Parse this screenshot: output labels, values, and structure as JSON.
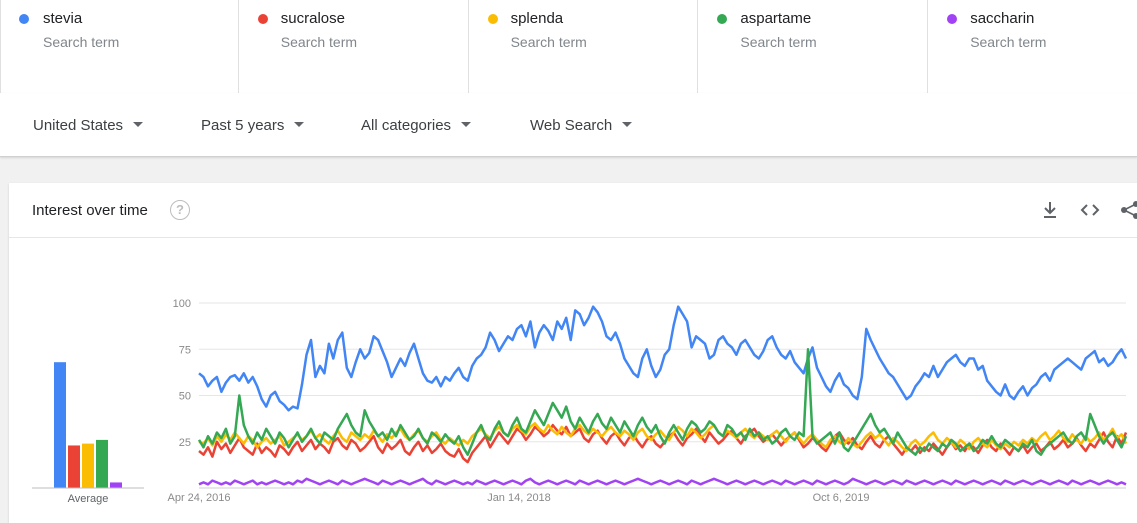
{
  "terms": [
    {
      "name": "stevia",
      "sub": "Search term",
      "color": "#4285f4"
    },
    {
      "name": "sucralose",
      "sub": "Search term",
      "color": "#ea4335"
    },
    {
      "name": "splenda",
      "sub": "Search term",
      "color": "#fbbc04"
    },
    {
      "name": "aspartame",
      "sub": "Search term",
      "color": "#34a853"
    },
    {
      "name": "saccharin",
      "sub": "Search term",
      "color": "#a142f4"
    }
  ],
  "filters": {
    "region": "United States",
    "time": "Past 5 years",
    "category": "All categories",
    "search_type": "Web Search"
  },
  "card": {
    "title": "Interest over time",
    "help_icon": "question-mark-icon",
    "tools": [
      "download-icon",
      "embed-code-icon",
      "share-icon"
    ]
  },
  "chart_data": {
    "type": "line",
    "ylim": [
      0,
      100
    ],
    "yticks": [
      "100",
      "75",
      "50",
      "25"
    ],
    "xticks": [
      "Apr 24, 2016",
      "Jan 14, 2018",
      "Oct 6, 2019"
    ],
    "average_label": "Average",
    "averages": [
      68,
      23,
      24,
      26,
      3
    ],
    "series": [
      {
        "name": "stevia",
        "color": "#4285f4",
        "values": [
          62,
          60,
          55,
          58,
          60,
          52,
          57,
          60,
          61,
          58,
          62,
          57,
          60,
          55,
          48,
          44,
          50,
          52,
          47,
          45,
          42,
          44,
          43,
          56,
          72,
          80,
          60,
          66,
          62,
          78,
          70,
          80,
          84,
          65,
          60,
          68,
          75,
          70,
          73,
          82,
          80,
          74,
          68,
          60,
          65,
          70,
          66,
          73,
          78,
          70,
          62,
          58,
          57,
          60,
          55,
          60,
          58,
          62,
          65,
          60,
          58,
          66,
          70,
          72,
          76,
          84,
          80,
          74,
          78,
          82,
          80,
          86,
          88,
          82,
          90,
          76,
          84,
          88,
          85,
          80,
          90,
          86,
          92,
          80,
          96,
          94,
          88,
          92,
          98,
          95,
          90,
          82,
          80,
          84,
          78,
          70,
          66,
          62,
          60,
          70,
          75,
          66,
          60,
          64,
          72,
          75,
          88,
          98,
          94,
          90,
          76,
          82,
          80,
          78,
          70,
          72,
          80,
          82,
          78,
          76,
          72,
          78,
          80,
          76,
          72,
          70,
          74,
          80,
          82,
          76,
          72,
          70,
          74,
          68,
          65,
          62,
          70,
          76,
          65,
          60,
          55,
          52,
          58,
          62,
          56,
          54,
          50,
          48,
          60,
          86,
          80,
          75,
          70,
          66,
          62,
          60,
          56,
          52,
          48,
          50,
          55,
          58,
          62,
          60,
          66,
          60,
          64,
          68,
          70,
          72,
          68,
          66,
          70,
          70,
          64,
          66,
          58,
          55,
          52,
          50,
          56,
          50,
          48,
          52,
          55,
          50,
          54,
          56,
          60,
          62,
          58,
          64,
          66,
          68,
          70,
          68,
          66,
          64,
          70,
          72,
          74,
          68,
          70,
          66,
          68,
          72,
          75,
          70
        ]
      },
      {
        "name": "sucralose",
        "color": "#ea4335",
        "values": [
          20,
          18,
          22,
          17,
          25,
          21,
          24,
          19,
          23,
          27,
          22,
          20,
          18,
          24,
          19,
          22,
          20,
          17,
          23,
          21,
          18,
          22,
          25,
          20,
          23,
          26,
          21,
          24,
          22,
          19,
          25,
          27,
          23,
          21,
          26,
          24,
          20,
          22,
          25,
          28,
          22,
          19,
          24,
          21,
          23,
          26,
          20,
          18,
          22,
          25,
          20,
          23,
          19,
          21,
          24,
          20,
          18,
          17,
          21,
          16,
          14,
          19,
          22,
          25,
          28,
          22,
          26,
          30,
          27,
          24,
          28,
          32,
          30,
          26,
          29,
          33,
          31,
          28,
          30,
          34,
          31,
          29,
          33,
          28,
          30,
          32,
          27,
          25,
          29,
          31,
          27,
          24,
          28,
          30,
          26,
          23,
          27,
          29,
          25,
          22,
          26,
          28,
          24,
          22,
          25,
          28,
          30,
          26,
          23,
          27,
          29,
          32,
          28,
          25,
          30,
          27,
          24,
          26,
          29,
          31,
          27,
          24,
          28,
          30,
          32,
          28,
          25,
          27,
          29,
          26,
          23,
          26,
          28,
          30,
          26,
          22,
          24,
          27,
          25,
          22,
          20,
          24,
          28,
          30,
          26,
          24,
          27,
          23,
          21,
          25,
          28,
          24,
          22,
          26,
          28,
          24,
          21,
          18,
          22,
          20,
          23,
          19,
          22,
          20,
          24,
          21,
          18,
          22,
          25,
          21,
          23,
          20,
          24,
          22,
          19,
          23,
          26,
          22,
          20,
          24,
          21,
          18,
          22,
          20,
          23,
          19,
          22,
          24,
          20,
          22,
          25,
          21,
          23,
          26,
          22,
          24,
          27,
          23,
          20,
          24,
          22,
          26,
          30,
          25,
          22,
          28,
          24,
          30
        ]
      },
      {
        "name": "splenda",
        "color": "#fbbc04",
        "values": [
          25,
          24,
          27,
          23,
          28,
          25,
          29,
          26,
          30,
          27,
          24,
          28,
          26,
          22,
          25,
          27,
          24,
          26,
          28,
          23,
          25,
          27,
          29,
          26,
          28,
          31,
          27,
          29,
          26,
          24,
          28,
          31,
          27,
          25,
          30,
          28,
          26,
          29,
          27,
          31,
          28,
          25,
          29,
          27,
          30,
          32,
          28,
          26,
          29,
          31,
          27,
          25,
          28,
          30,
          26,
          24,
          27,
          25,
          23,
          26,
          24,
          28,
          30,
          32,
          29,
          27,
          31,
          33,
          30,
          28,
          32,
          34,
          31,
          29,
          33,
          35,
          32,
          30,
          34,
          31,
          29,
          33,
          30,
          28,
          32,
          34,
          31,
          29,
          32,
          30,
          28,
          31,
          33,
          30,
          28,
          31,
          29,
          26,
          30,
          32,
          28,
          26,
          29,
          31,
          28,
          26,
          30,
          33,
          31,
          28,
          32,
          30,
          27,
          29,
          32,
          34,
          30,
          28,
          31,
          29,
          27,
          30,
          32,
          29,
          27,
          30,
          28,
          26,
          29,
          31,
          28,
          25,
          28,
          30,
          27,
          24,
          27,
          29,
          26,
          24,
          22,
          26,
          28,
          25,
          23,
          27,
          24,
          22,
          25,
          28,
          30,
          27,
          29,
          26,
          23,
          27,
          25,
          22,
          20,
          24,
          26,
          23,
          25,
          28,
          30,
          26,
          24,
          27,
          25,
          22,
          26,
          24,
          21,
          25,
          27,
          24,
          22,
          26,
          23,
          21,
          24,
          22,
          25,
          23,
          26,
          24,
          27,
          25,
          28,
          30,
          26,
          28,
          31,
          27,
          25,
          29,
          26,
          24,
          28,
          25,
          27,
          30,
          26,
          28,
          32,
          27,
          29,
          24
        ]
      },
      {
        "name": "aspartame",
        "color": "#34a853",
        "values": [
          26,
          22,
          28,
          24,
          30,
          27,
          32,
          24,
          28,
          50,
          34,
          28,
          24,
          30,
          26,
          32,
          28,
          24,
          30,
          27,
          22,
          26,
          30,
          25,
          28,
          32,
          27,
          24,
          30,
          28,
          26,
          32,
          36,
          40,
          34,
          30,
          28,
          42,
          36,
          32,
          28,
          30,
          26,
          32,
          28,
          34,
          30,
          26,
          28,
          32,
          27,
          24,
          30,
          28,
          25,
          29,
          26,
          24,
          28,
          22,
          18,
          24,
          30,
          34,
          28,
          26,
          32,
          36,
          30,
          28,
          34,
          38,
          32,
          30,
          36,
          42,
          38,
          34,
          40,
          46,
          42,
          38,
          44,
          36,
          32,
          38,
          34,
          30,
          36,
          40,
          35,
          32,
          38,
          34,
          30,
          36,
          32,
          28,
          34,
          38,
          33,
          30,
          34,
          28,
          24,
          30,
          34,
          30,
          26,
          32,
          36,
          34,
          30,
          32,
          36,
          34,
          30,
          28,
          34,
          32,
          28,
          30,
          26,
          32,
          28,
          30,
          26,
          28,
          24,
          26,
          30,
          32,
          28,
          26,
          30,
          28,
          75,
          28,
          24,
          26,
          28,
          30,
          24,
          30,
          22,
          20,
          24,
          28,
          32,
          36,
          40,
          34,
          30,
          32,
          28,
          24,
          30,
          26,
          22,
          20,
          18,
          22,
          20,
          24,
          22,
          20,
          24,
          22,
          26,
          24,
          20,
          22,
          24,
          20,
          22,
          26,
          24,
          28,
          24,
          22,
          26,
          24,
          22,
          20,
          24,
          22,
          26,
          20,
          18,
          22,
          24,
          26,
          28,
          30,
          26,
          24,
          28,
          30,
          26,
          40,
          34,
          28,
          24,
          28,
          30,
          26,
          22,
          28
        ]
      },
      {
        "name": "saccharin",
        "color": "#a142f4",
        "values": [
          2,
          3,
          2,
          4,
          3,
          2,
          3,
          2,
          4,
          3,
          2,
          3,
          4,
          2,
          3,
          2,
          3,
          4,
          3,
          2,
          3,
          2,
          4,
          3,
          5,
          4,
          3,
          2,
          3,
          4,
          3,
          2,
          4,
          3,
          2,
          3,
          4,
          5,
          4,
          3,
          2,
          4,
          3,
          2,
          3,
          4,
          3,
          2,
          3,
          4,
          5,
          3,
          2,
          4,
          3,
          2,
          3,
          4,
          3,
          2,
          3,
          2,
          4,
          3,
          2,
          3,
          4,
          3,
          2,
          3,
          4,
          3,
          2,
          4,
          5,
          3,
          2,
          3,
          4,
          3,
          2,
          3,
          4,
          3,
          2,
          4,
          3,
          2,
          3,
          4,
          3,
          2,
          3,
          4,
          3,
          2,
          3,
          4,
          5,
          4,
          3,
          2,
          3,
          4,
          3,
          2,
          3,
          4,
          3,
          2,
          4,
          3,
          2,
          3,
          4,
          5,
          4,
          3,
          2,
          3,
          4,
          3,
          2,
          3,
          4,
          3,
          2,
          3,
          4,
          3,
          2,
          4,
          3,
          2,
          3,
          4,
          3,
          2,
          4,
          3,
          2,
          3,
          4,
          3,
          2,
          3,
          5,
          4,
          3,
          2,
          3,
          4,
          3,
          2,
          3,
          4,
          3,
          2,
          4,
          3,
          2,
          3,
          4,
          3,
          2,
          3,
          4,
          3,
          2,
          4,
          3,
          2,
          3,
          4,
          3,
          2,
          3,
          4,
          3,
          2,
          4,
          3,
          2,
          3,
          4,
          3,
          2,
          3,
          4,
          3,
          2,
          3,
          4,
          3,
          2,
          4,
          3,
          2,
          3,
          4,
          3,
          2,
          3,
          4,
          3,
          2,
          3,
          2
        ]
      }
    ]
  }
}
